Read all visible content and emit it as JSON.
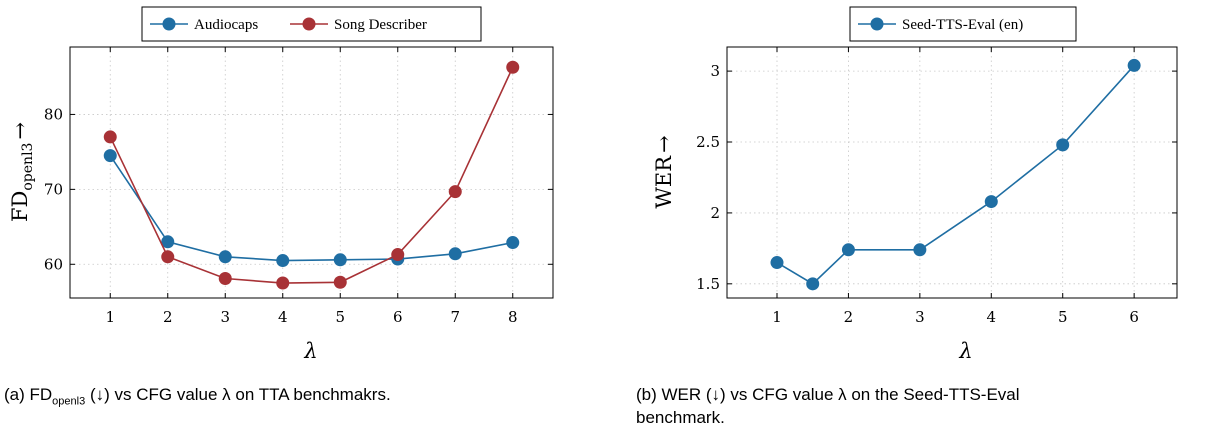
{
  "colors": {
    "blue": "#1f6ea3",
    "red": "#a83236",
    "grid": "#c8c8c8"
  },
  "chart_data": [
    {
      "type": "line",
      "panel": "a",
      "x": [
        1,
        2,
        3,
        4,
        5,
        6,
        7,
        8
      ],
      "xticks": [
        "1",
        "2",
        "3",
        "4",
        "5",
        "6",
        "7",
        "8"
      ],
      "xlim": [
        0.3,
        8.7
      ],
      "ylim": [
        55.5,
        89.0
      ],
      "yticks": [
        60,
        70,
        80
      ],
      "ytick_labels": [
        "60",
        "70",
        "80"
      ],
      "xlabel": "λ",
      "ylabel": "FD",
      "ylabel_sub": "openl3",
      "ylabel_arrow": "→",
      "grid": true,
      "legend_position": "top-center",
      "series": [
        {
          "name": "Audiocaps",
          "color": "#1f6ea3",
          "values": [
            74.5,
            63.0,
            61.0,
            60.5,
            60.6,
            60.7,
            61.4,
            62.9
          ]
        },
        {
          "name": "Song Describer",
          "color": "#a83236",
          "values": [
            77.0,
            61.0,
            58.1,
            57.5,
            57.6,
            61.3,
            69.7,
            86.3
          ]
        }
      ],
      "caption": {
        "prefix": "(a) FD",
        "sub": "openl3",
        "suffix": " (↓) vs CFG value λ on TTA benchmakrs."
      }
    },
    {
      "type": "line",
      "panel": "b",
      "x": [
        1,
        1.5,
        2,
        3,
        4,
        5,
        6
      ],
      "xticks": [
        "1",
        "2",
        "3",
        "4",
        "5",
        "6"
      ],
      "xtick_values": [
        1,
        2,
        3,
        4,
        5,
        6
      ],
      "xlim": [
        0.3,
        6.6
      ],
      "ylim": [
        1.4,
        3.17
      ],
      "yticks": [
        1.5,
        2,
        2.5,
        3
      ],
      "ytick_labels": [
        "1.5",
        "2",
        "2.5",
        "3"
      ],
      "xlabel": "λ",
      "ylabel": "WER",
      "ylabel_arrow": "→",
      "grid": true,
      "legend_position": "top-center",
      "series": [
        {
          "name": "Seed-TTS-Eval (en)",
          "color": "#1f6ea3",
          "values": [
            1.65,
            1.5,
            1.74,
            1.74,
            2.08,
            2.48,
            3.04
          ]
        }
      ],
      "caption": {
        "line1": "(b) WER (↓) vs CFG value λ on the Seed-TTS-Eval",
        "line2": "benchmark."
      }
    }
  ]
}
